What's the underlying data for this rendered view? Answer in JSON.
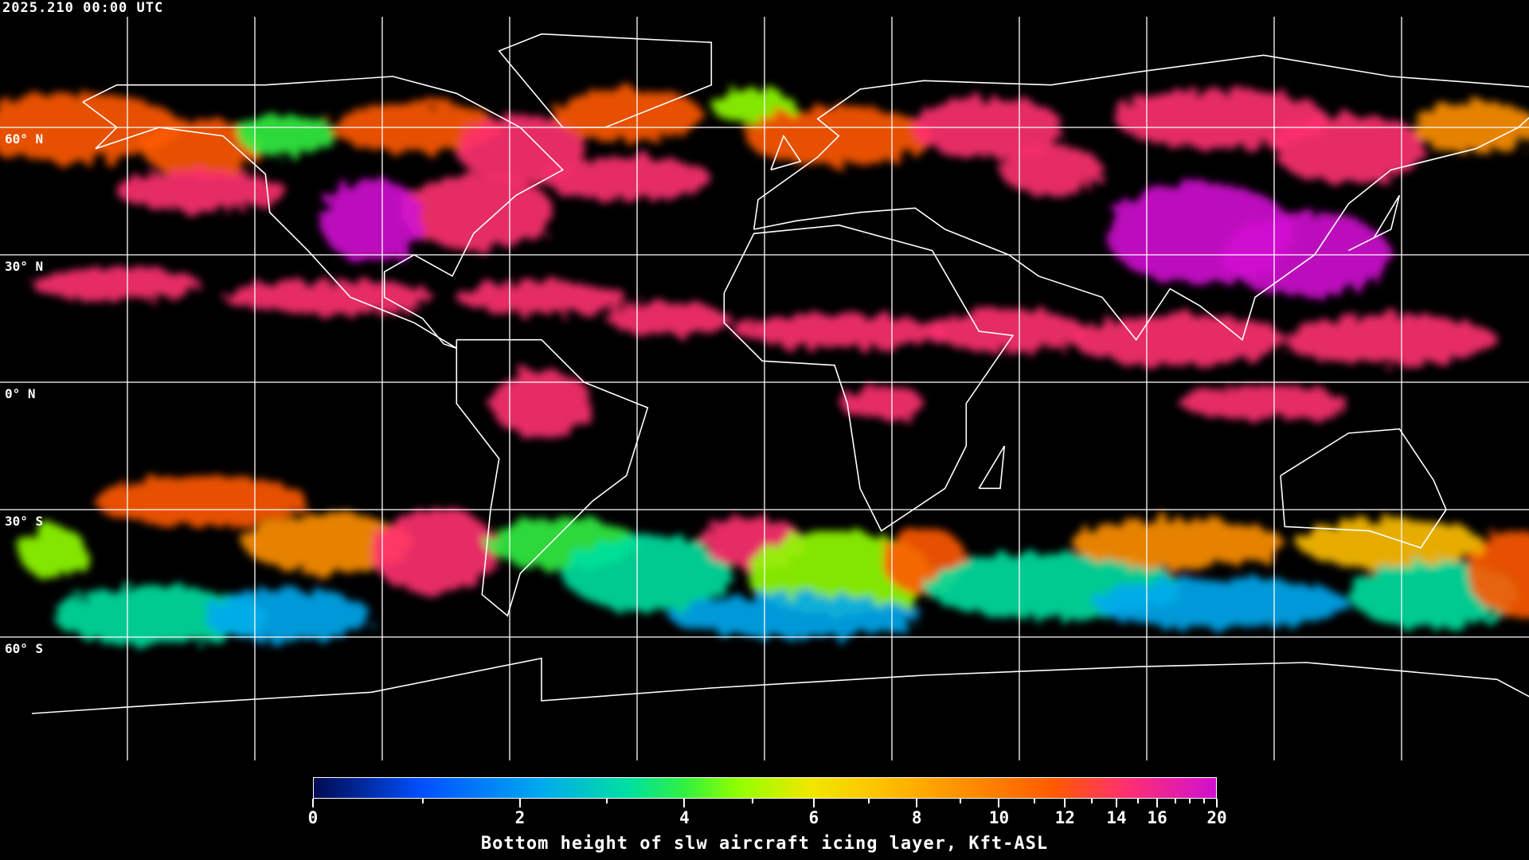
{
  "timestamp": "2025.210 00:00 UTC",
  "map": {
    "projection": "equirectangular",
    "grid_spacing_deg": 30,
    "latitude_labels": [
      "60° N",
      "30° N",
      "0° N",
      "30° S",
      "60° S"
    ],
    "coastline_color": "#ffffff",
    "background_color": "#000000"
  },
  "colorbar": {
    "title": "Bottom height of slw aircraft icing layer, Kft-ASL",
    "min": 0,
    "max": 20,
    "tick_labels": [
      "0",
      "2",
      "4",
      "6",
      "8",
      "10",
      "12",
      "14",
      "16",
      "20"
    ],
    "minor_ticks": [
      1,
      3,
      5,
      7,
      9,
      11,
      13,
      15,
      17,
      18,
      19
    ],
    "colors": [
      "#000a50",
      "#0050ff",
      "#00a8f0",
      "#00e0a0",
      "#30f040",
      "#90ff00",
      "#f0e800",
      "#ffc000",
      "#ff9000",
      "#ff5a00",
      "#ff3070",
      "#d010d0"
    ]
  }
}
